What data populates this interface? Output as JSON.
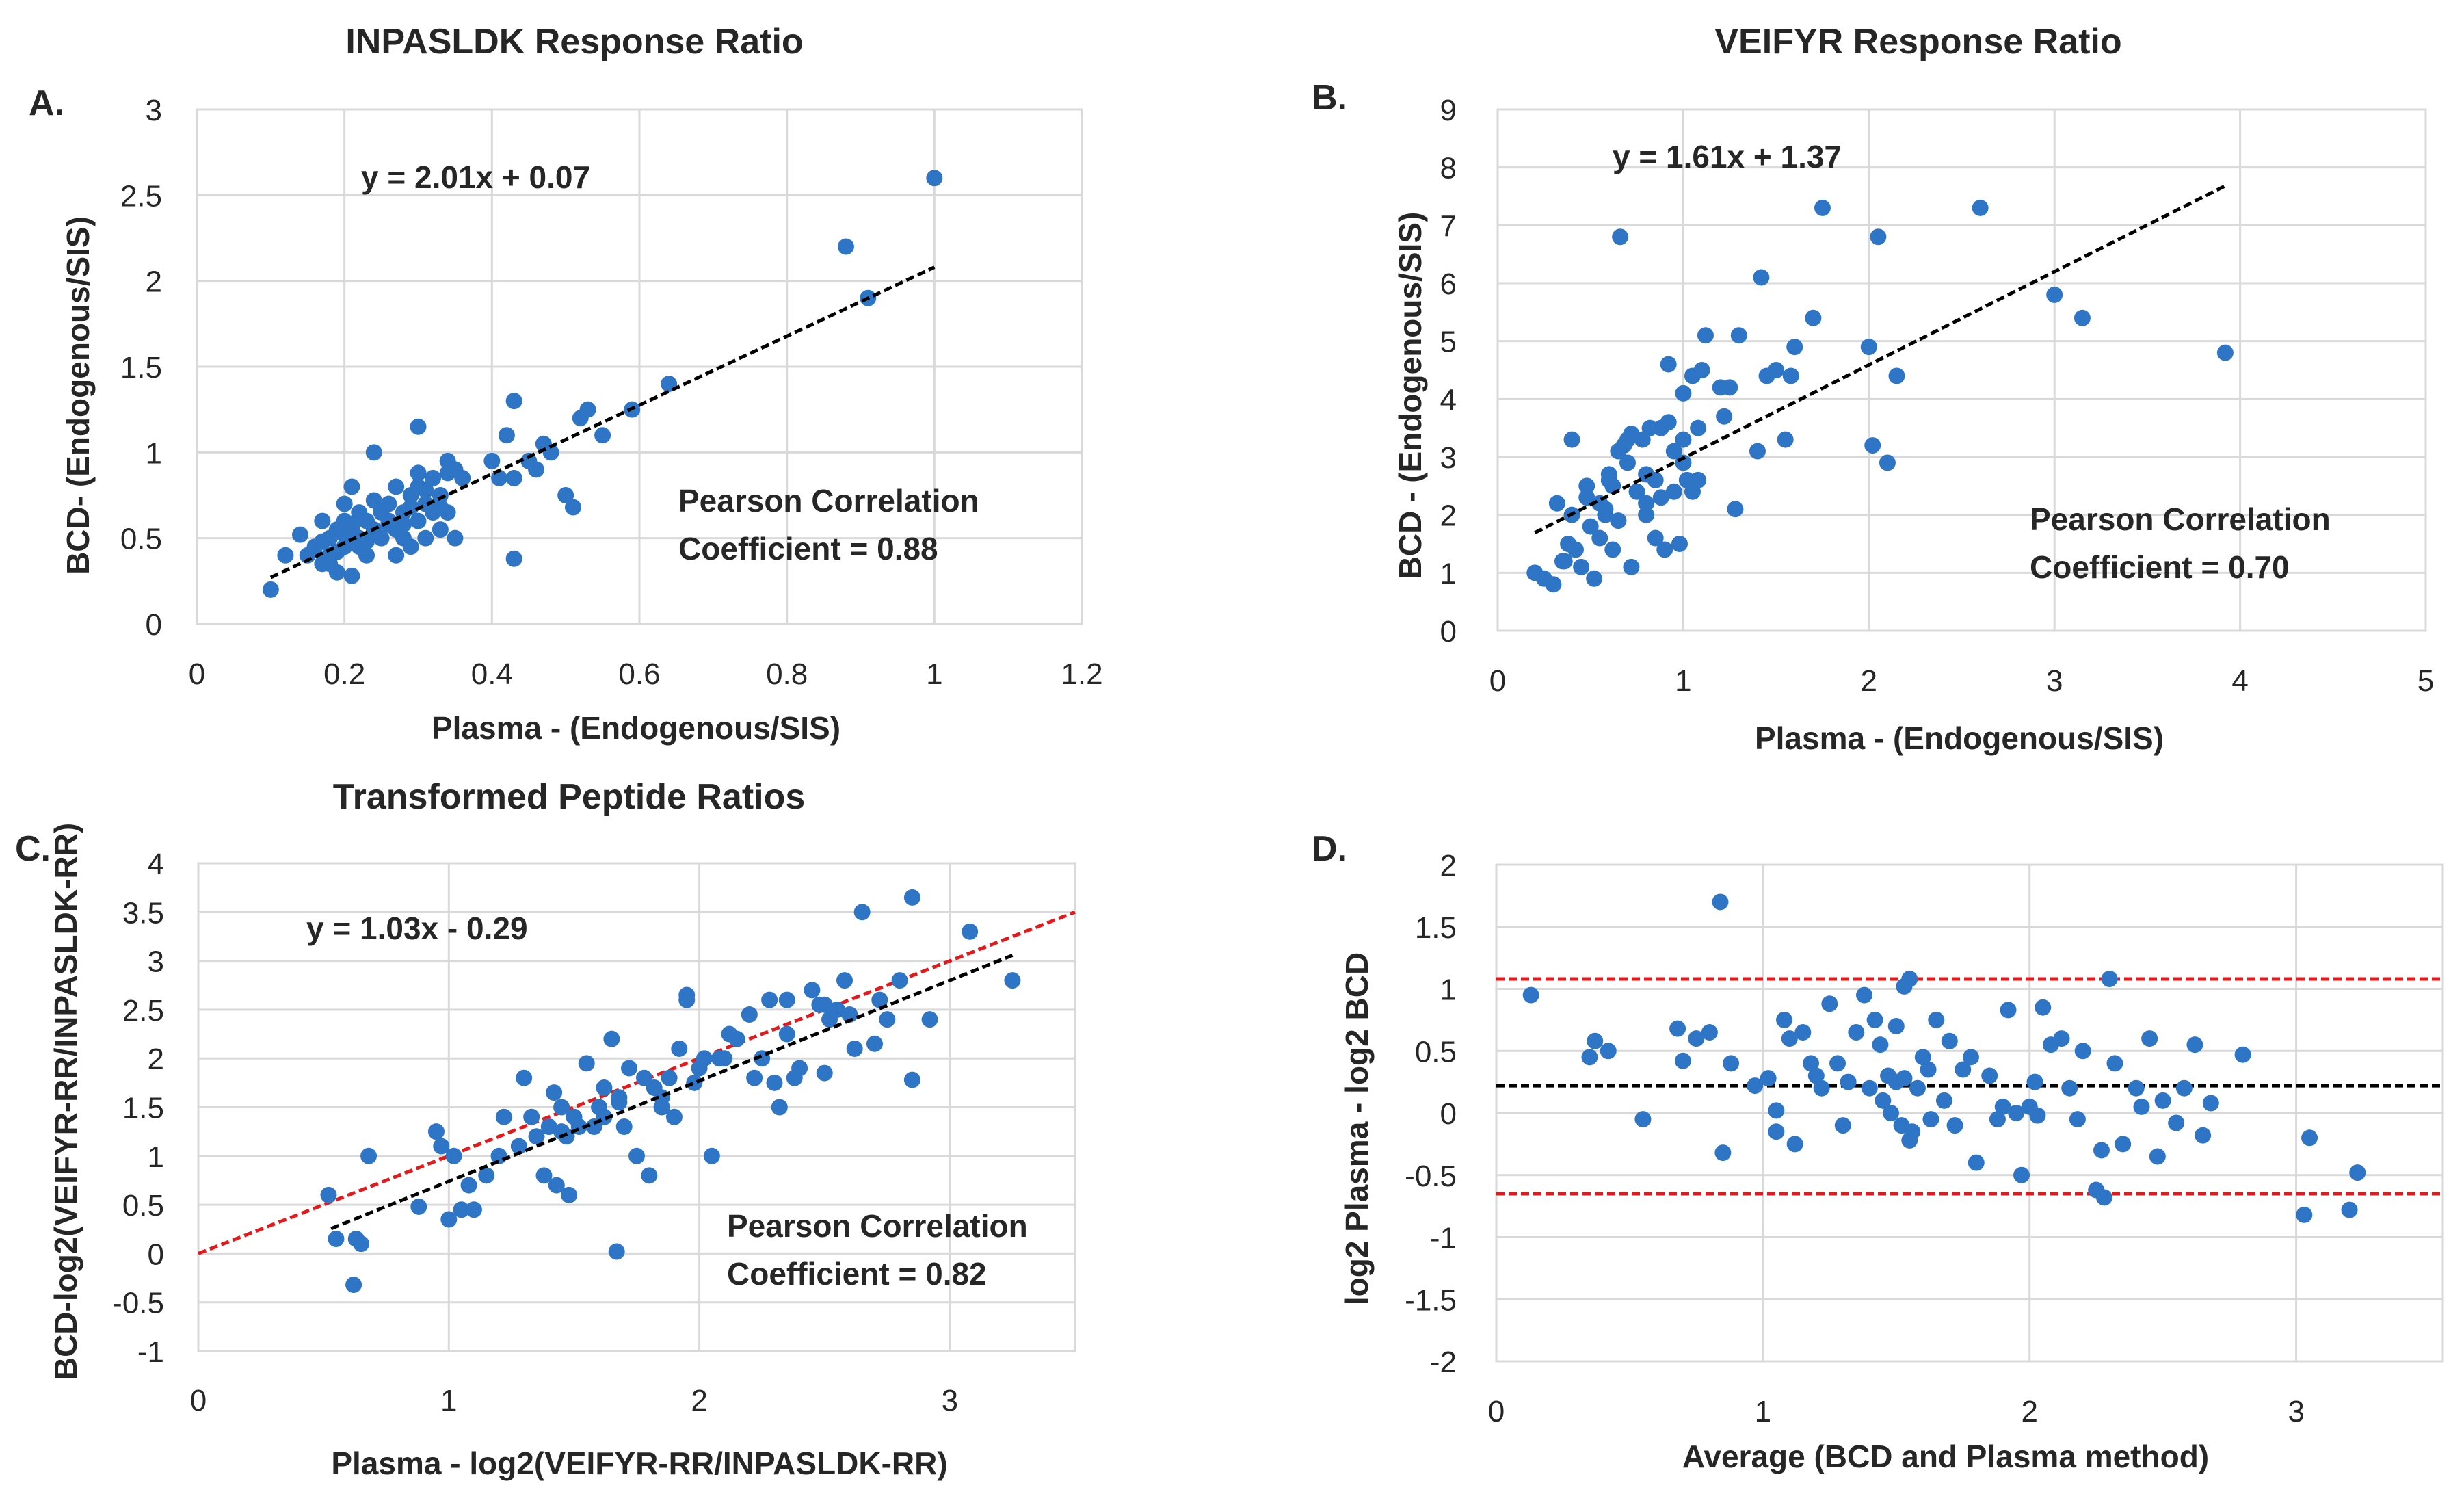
{
  "chart_data": [
    {
      "panel": "A.",
      "type": "scatter",
      "title": "INPASLDK Response Ratio",
      "xlabel": "Plasma - (Endogenous/SIS)",
      "ylabel": "BCD- (Endogenous/SIS)",
      "xlim": [
        0,
        1.2
      ],
      "ylim": [
        0,
        3
      ],
      "xticks": [
        "0",
        "0.2",
        "0.4",
        "0.6",
        "0.8",
        "1",
        "1.2"
      ],
      "yticks": [
        "0",
        "0.5",
        "1",
        "1.5",
        "2",
        "2.5",
        "3"
      ],
      "equation": "y = 2.01x + 0.07",
      "annotation_line1": "Pearson Correlation",
      "annotation_line2": "Coefficient = 0.88",
      "trendline": {
        "slope": 2.01,
        "intercept": 0.07,
        "x_range": [
          0.1,
          1.0
        ],
        "color": "#000000"
      },
      "point_color": "#2E75C6",
      "x": [
        0.1,
        0.12,
        0.14,
        0.15,
        0.16,
        0.17,
        0.17,
        0.18,
        0.18,
        0.19,
        0.19,
        0.2,
        0.2,
        0.2,
        0.21,
        0.21,
        0.21,
        0.22,
        0.22,
        0.22,
        0.23,
        0.23,
        0.24,
        0.24,
        0.25,
        0.25,
        0.26,
        0.26,
        0.27,
        0.27,
        0.27,
        0.28,
        0.28,
        0.29,
        0.29,
        0.3,
        0.3,
        0.3,
        0.31,
        0.31,
        0.32,
        0.32,
        0.33,
        0.33,
        0.34,
        0.34,
        0.35,
        0.35,
        0.36,
        0.21,
        0.17,
        0.19,
        0.2,
        0.22,
        0.24,
        0.26,
        0.29,
        0.31,
        0.34,
        0.18,
        0.2,
        0.23,
        0.25,
        0.28,
        0.3,
        0.33,
        0.4,
        0.41,
        0.42,
        0.43,
        0.43,
        0.45,
        0.46,
        0.47,
        0.48,
        0.5,
        0.51,
        0.52,
        0.53,
        0.55,
        0.59,
        0.64,
        0.88,
        0.91,
        1.0,
        0.43,
        0.3,
        0.22
      ],
      "y": [
        0.2,
        0.4,
        0.52,
        0.4,
        0.45,
        0.35,
        0.6,
        0.5,
        0.4,
        0.55,
        0.3,
        0.6,
        0.45,
        0.7,
        0.55,
        0.8,
        0.28,
        0.5,
        0.65,
        0.45,
        0.6,
        0.4,
        0.55,
        1.0,
        0.65,
        0.5,
        0.6,
        0.7,
        0.55,
        0.8,
        0.4,
        0.65,
        0.5,
        0.75,
        0.45,
        0.8,
        0.6,
        1.15,
        0.7,
        0.5,
        0.85,
        0.65,
        0.75,
        0.55,
        0.95,
        0.65,
        0.9,
        0.5,
        0.85,
        0.58,
        0.48,
        0.42,
        0.52,
        0.62,
        0.72,
        0.58,
        0.68,
        0.78,
        0.88,
        0.35,
        0.58,
        0.48,
        0.68,
        0.58,
        0.88,
        0.68,
        0.95,
        0.85,
        1.1,
        1.3,
        0.85,
        0.95,
        0.9,
        1.05,
        1.0,
        0.75,
        0.68,
        1.2,
        1.25,
        1.1,
        1.25,
        1.4,
        2.2,
        1.9,
        2.6,
        0.38,
        0.88,
        0.62
      ]
    },
    {
      "panel": "B.",
      "type": "scatter",
      "title": "VEIFYR Response Ratio",
      "xlabel": "Plasma - (Endogenous/SIS)",
      "ylabel": "BCD - (Endogenous/SIS)",
      "xlim": [
        0,
        5
      ],
      "ylim": [
        0,
        9
      ],
      "xticks": [
        "0",
        "1",
        "2",
        "3",
        "4",
        "5"
      ],
      "yticks": [
        "0",
        "1",
        "2",
        "3",
        "4",
        "5",
        "6",
        "7",
        "8",
        "9"
      ],
      "equation": "y = 1.61x + 1.37",
      "annotation_line1": "Pearson Correlation",
      "annotation_line2": "Coefficient = 0.70",
      "trendline": {
        "slope": 1.61,
        "intercept": 1.37,
        "x_range": [
          0.2,
          3.92
        ],
        "color": "#000000"
      },
      "point_color": "#2E75C6",
      "x": [
        0.2,
        0.25,
        0.3,
        0.32,
        0.35,
        0.38,
        0.4,
        0.42,
        0.45,
        0.48,
        0.5,
        0.52,
        0.55,
        0.55,
        0.58,
        0.6,
        0.62,
        0.62,
        0.65,
        0.66,
        0.68,
        0.7,
        0.72,
        0.72,
        0.75,
        0.78,
        0.8,
        0.8,
        0.82,
        0.85,
        0.85,
        0.88,
        0.9,
        0.92,
        0.95,
        0.95,
        0.98,
        1.0,
        1.0,
        1.02,
        1.05,
        1.05,
        1.08,
        1.08,
        1.1,
        1.12,
        1.2,
        1.22,
        1.25,
        1.28,
        1.3,
        1.4,
        1.42,
        1.45,
        1.5,
        1.55,
        1.58,
        1.6,
        1.7,
        1.75,
        2.0,
        2.02,
        2.05,
        2.1,
        2.15,
        2.6,
        3.0,
        3.15,
        3.92,
        0.4,
        0.58,
        0.6,
        0.48,
        0.7,
        0.88,
        0.92,
        1.0,
        0.36,
        0.65,
        0.8
      ],
      "y": [
        1.0,
        0.9,
        0.8,
        2.2,
        1.2,
        1.5,
        3.3,
        1.4,
        1.1,
        2.3,
        1.8,
        0.9,
        1.6,
        2.2,
        2.0,
        2.6,
        1.4,
        2.5,
        1.9,
        6.8,
        3.2,
        2.9,
        1.1,
        3.4,
        2.4,
        3.3,
        2.0,
        2.7,
        3.5,
        1.6,
        2.6,
        3.5,
        1.4,
        4.6,
        2.4,
        3.1,
        1.5,
        3.3,
        2.9,
        2.6,
        2.4,
        4.4,
        3.5,
        2.6,
        4.5,
        5.1,
        4.2,
        3.7,
        4.2,
        2.1,
        5.1,
        3.1,
        6.1,
        4.4,
        4.5,
        3.3,
        4.4,
        4.9,
        5.4,
        7.3,
        4.9,
        3.2,
        6.8,
        2.9,
        4.4,
        7.3,
        5.8,
        5.4,
        4.8,
        2.0,
        2.1,
        2.7,
        2.5,
        3.3,
        2.3,
        3.6,
        4.1,
        1.2,
        3.1,
        2.2
      ]
    },
    {
      "panel": "C.",
      "type": "scatter",
      "title": "Transformed Peptide Ratios",
      "xlabel": "Plasma - log2(VEIFYR-RR/INPASLDK-RR)",
      "ylabel": "BCD-log2(VEIFYR-RR/INPASLDK-RR)",
      "xlim": [
        0,
        3.5
      ],
      "ylim": [
        -1,
        4
      ],
      "xticks": [
        "0",
        "1",
        "2",
        "3"
      ],
      "yticks": [
        "-1",
        "-0.5",
        "0",
        "0.5",
        "1",
        "1.5",
        "2",
        "2.5",
        "3",
        "3.5",
        "4"
      ],
      "equation": "y = 1.03x - 0.29",
      "annotation_line1": "Pearson Correlation",
      "annotation_line2": "Coefficient = 0.82",
      "trendline": {
        "slope": 1.03,
        "intercept": -0.29,
        "x_range": [
          0.53,
          3.25
        ],
        "color": "#000000"
      },
      "identity_line": {
        "slope": 1.0,
        "intercept": 0.0,
        "x_range": [
          0,
          3.5
        ],
        "color": "#E31A1C"
      },
      "point_color": "#2E75C6",
      "x": [
        0.52,
        0.55,
        0.62,
        0.63,
        0.65,
        0.68,
        0.88,
        0.95,
        0.97,
        1.0,
        1.02,
        1.05,
        1.08,
        1.1,
        1.15,
        1.2,
        1.22,
        1.28,
        1.3,
        1.33,
        1.35,
        1.38,
        1.4,
        1.42,
        1.43,
        1.45,
        1.47,
        1.48,
        1.5,
        1.52,
        1.55,
        1.58,
        1.6,
        1.62,
        1.65,
        1.67,
        1.68,
        1.7,
        1.72,
        1.75,
        1.78,
        1.8,
        1.82,
        1.85,
        1.88,
        1.9,
        1.92,
        1.95,
        1.95,
        1.98,
        2.0,
        2.02,
        2.05,
        2.08,
        2.12,
        2.15,
        2.2,
        2.22,
        2.25,
        2.28,
        2.3,
        2.32,
        2.35,
        2.38,
        2.4,
        2.45,
        2.48,
        2.5,
        2.52,
        2.55,
        2.58,
        2.62,
        2.65,
        2.7,
        2.75,
        2.8,
        2.85,
        2.85,
        2.92,
        3.08,
        3.25,
        1.68,
        1.45,
        1.62,
        1.85,
        2.1,
        2.35,
        2.5,
        2.6,
        2.72
      ],
      "y": [
        0.6,
        0.15,
        -0.32,
        0.15,
        0.1,
        1.0,
        0.48,
        1.25,
        1.1,
        0.35,
        1.0,
        0.45,
        0.7,
        0.45,
        0.8,
        1.0,
        1.4,
        1.1,
        1.8,
        1.4,
        1.2,
        0.8,
        1.3,
        1.65,
        0.7,
        1.5,
        1.2,
        0.6,
        1.4,
        1.3,
        1.95,
        1.3,
        1.5,
        1.4,
        2.2,
        0.02,
        1.6,
        1.3,
        1.9,
        1.0,
        1.8,
        0.8,
        1.7,
        1.5,
        1.8,
        1.4,
        2.1,
        2.6,
        2.65,
        1.75,
        1.9,
        2.0,
        1.0,
        2.0,
        2.25,
        2.2,
        2.45,
        1.8,
        2.0,
        2.6,
        1.75,
        1.5,
        2.6,
        1.8,
        1.9,
        2.7,
        2.55,
        1.85,
        2.4,
        2.5,
        2.8,
        2.1,
        3.5,
        2.15,
        2.4,
        2.8,
        3.65,
        1.78,
        2.4,
        3.3,
        2.8,
        1.55,
        1.25,
        1.7,
        1.6,
        2.0,
        2.25,
        2.55,
        2.45,
        2.6
      ]
    },
    {
      "panel": "D.",
      "type": "scatter",
      "title": "",
      "xlabel": "Average (BCD and Plasma method)",
      "ylabel": "log2 Plasma - log2 BCD",
      "xlim": [
        0,
        3.55
      ],
      "ylim": [
        -2,
        2
      ],
      "xticks": [
        "0",
        "1",
        "2",
        "3"
      ],
      "yticks": [
        "-2",
        "-1.5",
        "-1",
        "-0.5",
        "0",
        "0.5",
        "1",
        "1.5",
        "2"
      ],
      "mean_line": {
        "y": 0.22,
        "color": "#000000"
      },
      "limit_lines": [
        {
          "y": 1.08,
          "color": "#E31A1C"
        },
        {
          "y": -0.65,
          "color": "#E31A1C"
        }
      ],
      "point_color": "#2E75C6",
      "x": [
        0.13,
        0.35,
        0.37,
        0.42,
        0.55,
        0.68,
        0.7,
        0.75,
        0.8,
        0.84,
        0.85,
        0.88,
        1.02,
        1.05,
        1.05,
        1.08,
        1.1,
        1.12,
        1.15,
        1.18,
        1.2,
        1.22,
        1.25,
        1.28,
        1.3,
        1.32,
        1.35,
        1.38,
        1.4,
        1.42,
        1.44,
        1.45,
        1.47,
        1.48,
        1.5,
        1.5,
        1.52,
        1.53,
        1.55,
        1.55,
        1.58,
        1.6,
        1.62,
        1.63,
        1.65,
        1.68,
        1.7,
        1.72,
        1.75,
        1.78,
        1.8,
        1.85,
        1.88,
        1.9,
        1.92,
        1.95,
        1.97,
        2.0,
        2.02,
        2.03,
        2.05,
        2.08,
        2.12,
        2.15,
        2.18,
        2.2,
        2.25,
        2.28,
        2.3,
        2.32,
        2.35,
        2.4,
        2.42,
        2.45,
        2.48,
        2.5,
        2.55,
        2.58,
        2.62,
        2.65,
        2.68,
        2.8,
        3.03,
        3.05,
        3.2,
        3.23,
        1.53,
        1.56,
        0.97,
        2.27
      ],
      "y": [
        0.95,
        0.45,
        0.58,
        0.5,
        -0.05,
        0.68,
        0.42,
        0.6,
        0.65,
        1.7,
        -0.32,
        0.4,
        0.28,
        0.02,
        -0.15,
        0.75,
        0.6,
        -0.25,
        0.65,
        0.4,
        0.3,
        0.2,
        0.88,
        0.4,
        -0.1,
        0.25,
        0.65,
        0.95,
        0.2,
        0.75,
        0.55,
        0.1,
        0.3,
        0.0,
        0.7,
        0.25,
        -0.1,
        1.02,
        -0.22,
        1.08,
        0.2,
        0.45,
        0.35,
        -0.05,
        0.75,
        0.1,
        0.58,
        -0.1,
        0.35,
        0.45,
        -0.4,
        0.3,
        -0.05,
        0.05,
        0.83,
        0.0,
        -0.5,
        0.05,
        0.25,
        -0.02,
        0.85,
        0.55,
        0.6,
        0.2,
        -0.05,
        0.5,
        -0.62,
        -0.68,
        1.08,
        0.4,
        -0.25,
        0.2,
        0.05,
        0.6,
        -0.35,
        0.1,
        -0.08,
        0.2,
        0.55,
        -0.18,
        0.08,
        0.47,
        -0.82,
        -0.2,
        -0.78,
        -0.48,
        0.28,
        -0.15,
        0.22,
        -0.3
      ]
    }
  ]
}
